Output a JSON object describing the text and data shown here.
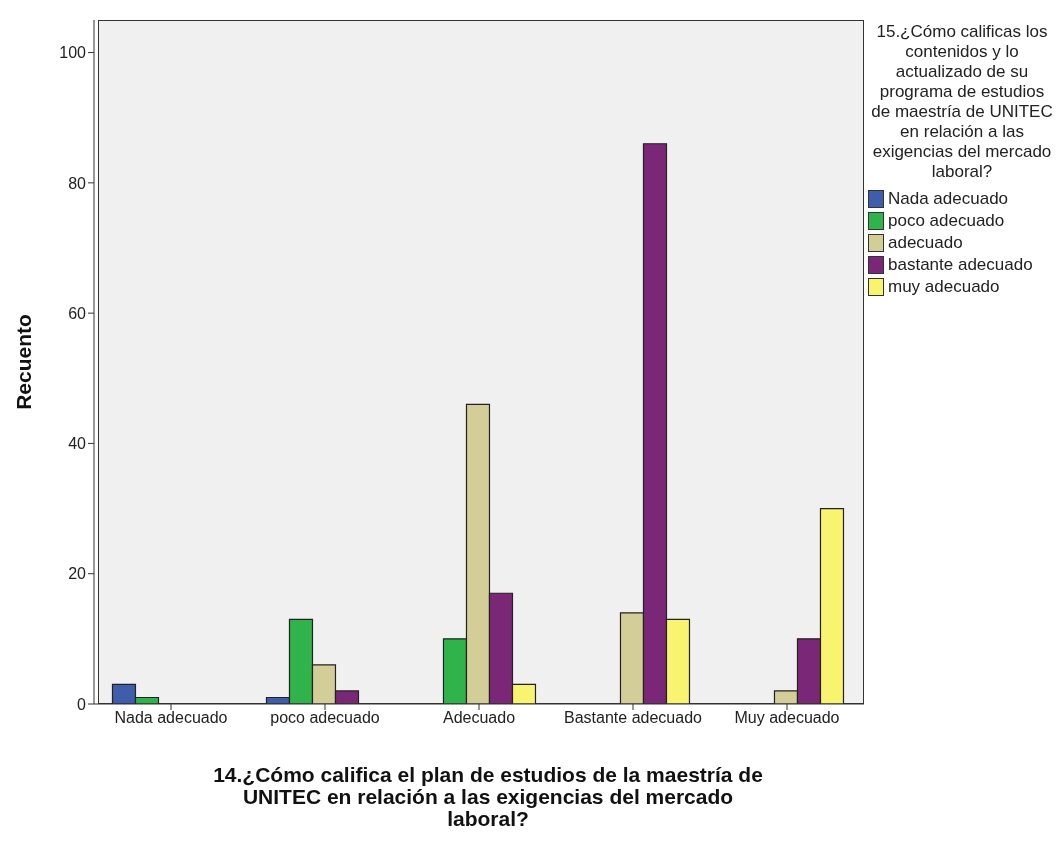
{
  "chart_data": {
    "type": "bar",
    "xlabel": "14.¿Cómo califica el plan de estudios de la maestría de UNITEC en relación a las exigencias del mercado laboral?",
    "ylabel": "Recuento",
    "legend_title": "15.¿Cómo calificas los contenidos y lo actualizado de su programa de estudios de maestría de UNITEC en relación a las exigencias del mercado laboral?",
    "categories": [
      "Nada adecuado",
      "poco adecuado",
      "Adecuado",
      "Bastante adecuado",
      "Muy adecuado"
    ],
    "series": [
      {
        "name": "Nada adecuado",
        "color": "#3e5daa",
        "values": [
          3,
          1,
          null,
          null,
          null
        ]
      },
      {
        "name": "poco adecuado",
        "color": "#2fb34a",
        "values": [
          1,
          13,
          10,
          null,
          null
        ]
      },
      {
        "name": "adecuado",
        "color": "#d3ce97",
        "values": [
          null,
          6,
          46,
          14,
          2
        ]
      },
      {
        "name": "bastante adecuado",
        "color": "#7b2778",
        "values": [
          null,
          2,
          17,
          86,
          10
        ]
      },
      {
        "name": "muy adecuado",
        "color": "#f8f46f",
        "values": [
          null,
          null,
          3,
          13,
          30
        ]
      }
    ],
    "ylim": [
      0,
      105
    ],
    "yticks": [
      0,
      20,
      40,
      60,
      80,
      100
    ],
    "grid": false,
    "legend": "right"
  }
}
